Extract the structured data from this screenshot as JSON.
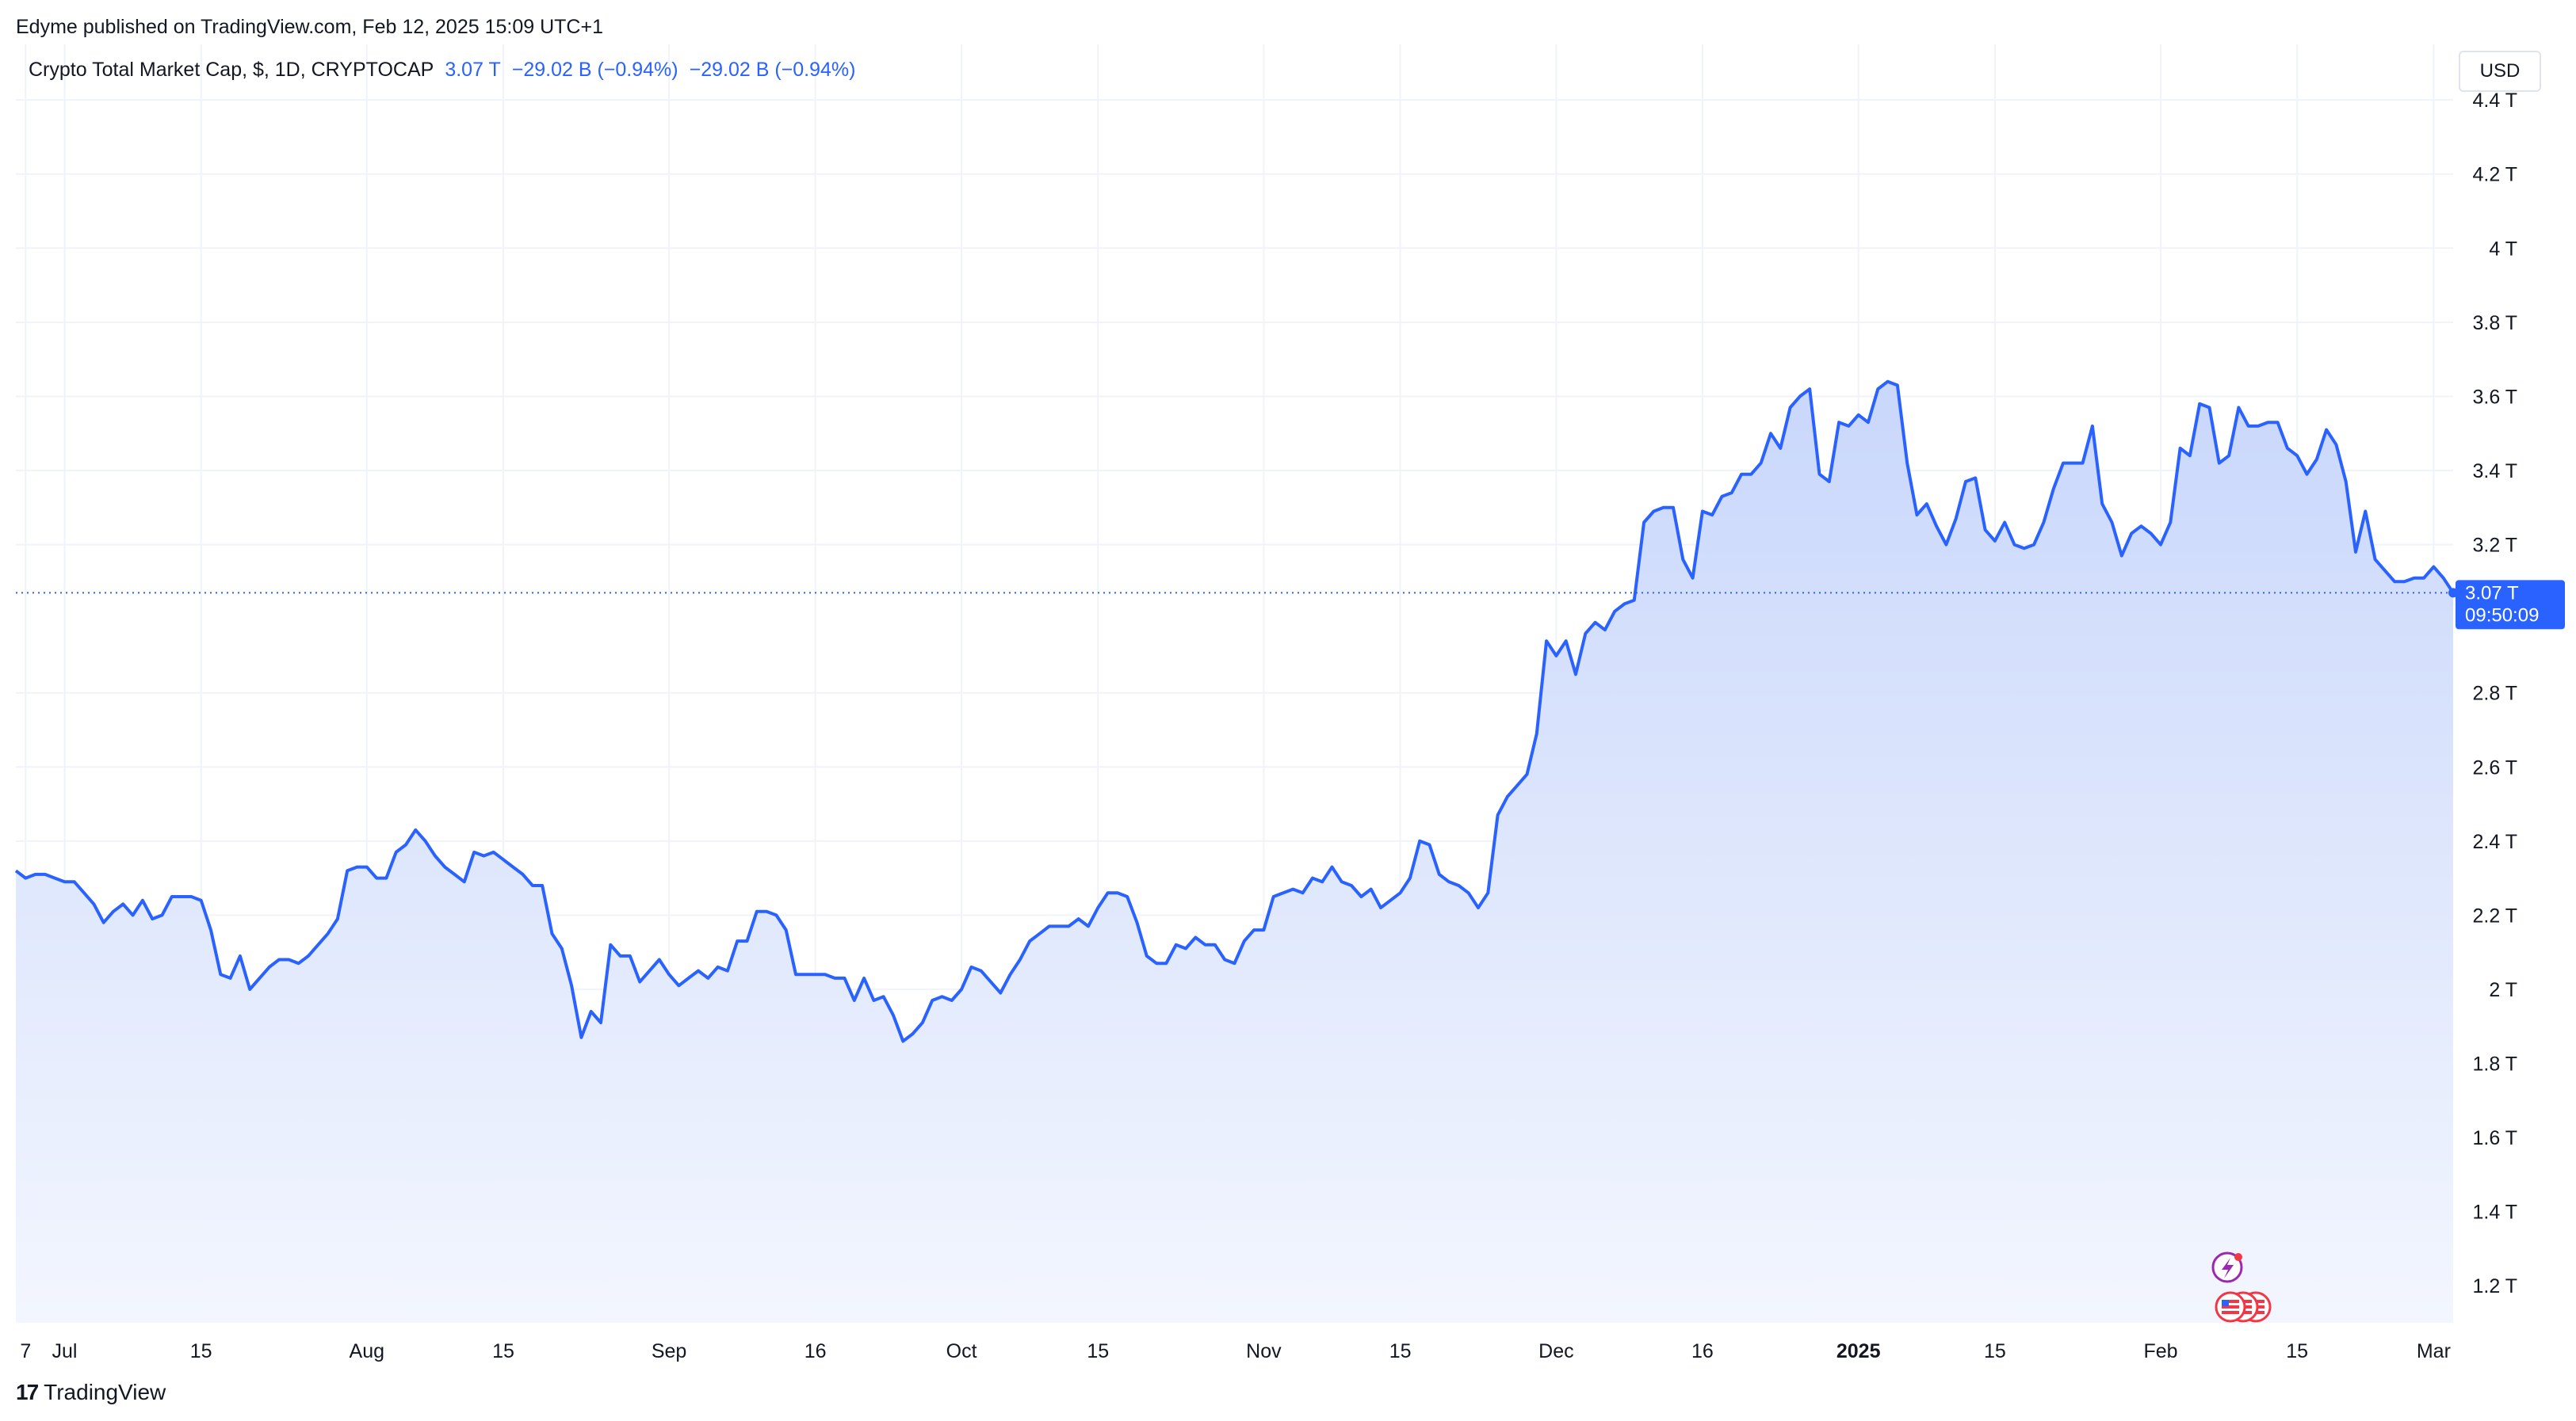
{
  "header": {
    "published_line": "Edyme published on TradingView.com, Feb 12, 2025 15:09 UTC+1"
  },
  "legend": {
    "symbol": "Crypto Total Market Cap, $, 1D, CRYPTOCAP",
    "last": "3.07 T",
    "change1": "−29.02 B (−0.94%)",
    "change2": "−29.02 B (−0.94%)"
  },
  "currency_button": "USD",
  "price_badge": {
    "price": "3.07 T",
    "countdown": "09:50:09"
  },
  "footer": {
    "brand": "TradingView",
    "logo": "17"
  },
  "colors": {
    "line": "#2962ff",
    "fill_top": "#c9d7fb",
    "fill_bottom": "#f3f6fe",
    "grid": "#f0f3fa"
  },
  "chart_data": {
    "type": "area",
    "y_unit": "T",
    "ylim": [
      1.1,
      4.55
    ],
    "grid": true,
    "y_ticks": [
      {
        "value": 1.2,
        "label": "1.2 T"
      },
      {
        "value": 1.4,
        "label": "1.4 T"
      },
      {
        "value": 1.6,
        "label": "1.6 T"
      },
      {
        "value": 1.8,
        "label": "1.8 T"
      },
      {
        "value": 2.0,
        "label": "2 T"
      },
      {
        "value": 2.2,
        "label": "2.2 T"
      },
      {
        "value": 2.4,
        "label": "2.4 T"
      },
      {
        "value": 2.6,
        "label": "2.6 T"
      },
      {
        "value": 2.8,
        "label": "2.8 T"
      },
      {
        "value": 3.2,
        "label": "3.2 T"
      },
      {
        "value": 3.4,
        "label": "3.4 T"
      },
      {
        "value": 3.6,
        "label": "3.6 T"
      },
      {
        "value": 3.8,
        "label": "3.8 T"
      },
      {
        "value": 4.0,
        "label": "4 T"
      },
      {
        "value": 4.2,
        "label": "4.2 T"
      },
      {
        "value": 4.4,
        "label": "4.4 T"
      }
    ],
    "x_ticks": [
      {
        "date": "2024-06-27",
        "label": "7"
      },
      {
        "date": "2024-07-01",
        "label": "Jul"
      },
      {
        "date": "2024-07-15",
        "label": "15"
      },
      {
        "date": "2024-08-01",
        "label": "Aug"
      },
      {
        "date": "2024-08-15",
        "label": "15"
      },
      {
        "date": "2024-09-01",
        "label": "Sep"
      },
      {
        "date": "2024-09-16",
        "label": "16"
      },
      {
        "date": "2024-10-01",
        "label": "Oct"
      },
      {
        "date": "2024-10-15",
        "label": "15"
      },
      {
        "date": "2024-11-01",
        "label": "Nov"
      },
      {
        "date": "2024-11-15",
        "label": "15"
      },
      {
        "date": "2024-12-01",
        "label": "Dec"
      },
      {
        "date": "2024-12-16",
        "label": "16"
      },
      {
        "date": "2025-01-01",
        "label": "2025",
        "bold": true
      },
      {
        "date": "2025-01-15",
        "label": "15"
      },
      {
        "date": "2025-02-01",
        "label": "Feb"
      },
      {
        "date": "2025-02-15",
        "label": "15"
      },
      {
        "date": "2025-03-01",
        "label": "Mar"
      }
    ],
    "x_range": [
      "2024-06-26",
      "2025-03-03"
    ],
    "last_value": 3.07,
    "series": [
      {
        "dates_start": "2024-06-26",
        "interval": "1D",
        "values": [
          2.32,
          2.3,
          2.31,
          2.31,
          2.3,
          2.29,
          2.29,
          2.26,
          2.23,
          2.18,
          2.21,
          2.23,
          2.2,
          2.24,
          2.19,
          2.2,
          2.25,
          2.25,
          2.25,
          2.24,
          2.16,
          2.04,
          2.03,
          2.09,
          2.0,
          2.03,
          2.06,
          2.08,
          2.08,
          2.07,
          2.09,
          2.12,
          2.15,
          2.19,
          2.32,
          2.33,
          2.33,
          2.3,
          2.3,
          2.37,
          2.39,
          2.43,
          2.4,
          2.36,
          2.33,
          2.31,
          2.29,
          2.37,
          2.36,
          2.37,
          2.35,
          2.33,
          2.31,
          2.28,
          2.28,
          2.15,
          2.11,
          2.01,
          1.87,
          1.94,
          1.91,
          2.12,
          2.09,
          2.09,
          2.02,
          2.05,
          2.08,
          2.04,
          2.01,
          2.03,
          2.05,
          2.03,
          2.06,
          2.05,
          2.13,
          2.13,
          2.21,
          2.21,
          2.2,
          2.16,
          2.04,
          2.04,
          2.04,
          2.04,
          2.03,
          2.03,
          1.97,
          2.03,
          1.97,
          1.98,
          1.93,
          1.86,
          1.88,
          1.91,
          1.97,
          1.98,
          1.97,
          2.0,
          2.06,
          2.05,
          2.02,
          1.99,
          2.04,
          2.08,
          2.13,
          2.15,
          2.17,
          2.17,
          2.17,
          2.19,
          2.17,
          2.22,
          2.26,
          2.26,
          2.25,
          2.18,
          2.09,
          2.07,
          2.07,
          2.12,
          2.11,
          2.14,
          2.12,
          2.12,
          2.08,
          2.07,
          2.13,
          2.16,
          2.16,
          2.25,
          2.26,
          2.27,
          2.26,
          2.3,
          2.29,
          2.33,
          2.29,
          2.28,
          2.25,
          2.27,
          2.22,
          2.24,
          2.26,
          2.3,
          2.4,
          2.39,
          2.31,
          2.29,
          2.28,
          2.26,
          2.22,
          2.26,
          2.47,
          2.52,
          2.55,
          2.58,
          2.69,
          2.94,
          2.9,
          2.94,
          2.85,
          2.96,
          2.99,
          2.97,
          3.02,
          3.04,
          3.05,
          3.26,
          3.29,
          3.3,
          3.3,
          3.16,
          3.11,
          3.29,
          3.28,
          3.33,
          3.34,
          3.39,
          3.39,
          3.42,
          3.5,
          3.46,
          3.57,
          3.6,
          3.62,
          3.39,
          3.37,
          3.53,
          3.52,
          3.55,
          3.53,
          3.62,
          3.64,
          3.63,
          3.42,
          3.28,
          3.31,
          3.25,
          3.2,
          3.27,
          3.37,
          3.38,
          3.24,
          3.21,
          3.26,
          3.2,
          3.19,
          3.2,
          3.26,
          3.35,
          3.42,
          3.42,
          3.42,
          3.52,
          3.31,
          3.26,
          3.17,
          3.23,
          3.25,
          3.23,
          3.2,
          3.26,
          3.46,
          3.44,
          3.58,
          3.57,
          3.42,
          3.44,
          3.57,
          3.52,
          3.52,
          3.53,
          3.53,
          3.46,
          3.44,
          3.39,
          3.43,
          3.51,
          3.47,
          3.37,
          3.18,
          3.29,
          3.16,
          3.13,
          3.1,
          3.1,
          3.11,
          3.11,
          3.14,
          3.11,
          3.07
        ]
      }
    ]
  }
}
